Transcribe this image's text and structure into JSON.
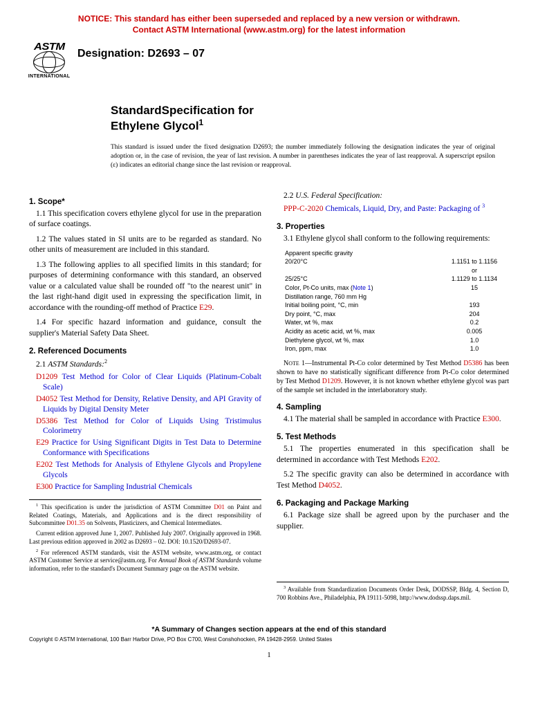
{
  "notice": {
    "line1": "NOTICE: This standard has either been superseded and replaced by a new version or withdrawn.",
    "line2": "Contact ASTM International (www.astm.org) for the latest information"
  },
  "logo": {
    "top": "ASTM",
    "bottom": "INTERNATIONAL"
  },
  "designation": "Designation: D2693 – 07",
  "title": {
    "line1": "StandardSpecification for",
    "line2": "Ethylene Glycol",
    "sup": "1"
  },
  "issue_note": "This standard is issued under the fixed designation D2693; the number immediately following the designation indicates the year of original adoption or, in the case of revision, the year of last revision. A number in parentheses indicates the year of last reapproval. A superscript epsilon (ε) indicates an editorial change since the last revision or reapproval.",
  "sections": {
    "s1_head": "1. Scope*",
    "s1_1": "1.1 This specification covers ethylene glycol for use in the preparation of surface coatings.",
    "s1_2": "1.2 The values stated in SI units are to be regarded as standard. No other units of measurement are included in this standard.",
    "s1_3a": "1.3 The following applies to all specified limits in this standard; for purposes of determining conformance with this standard, an observed value or a calculated value shall be rounded off \"to the nearest unit\" in the last right-hand digit used in expressing the specification limit, in accordance with the rounding-off method of Practice ",
    "s1_3_link": "E29",
    "s1_3b": ".",
    "s1_4": "1.4 For specific hazard information and guidance, consult the supplier's Material Safety Data Sheet.",
    "s2_head": "2. Referenced Documents",
    "s2_1_label": "2.1 ",
    "s2_1_italic": "ASTM Standards:",
    "s2_1_sup": "2",
    "refs": [
      {
        "code": "D1209",
        "text": "Test Method for Color of Clear Liquids (Platinum-Cobalt Scale)"
      },
      {
        "code": "D4052",
        "text": "Test Method for Density, Relative Density, and API Gravity of Liquids by Digital Density Meter"
      },
      {
        "code": "D5386",
        "text": "Test Method for Color of Liquids Using Tristimulus Colorimetry"
      },
      {
        "code": "E29",
        "text": "Practice for Using Significant Digits in Test Data to Determine Conformance with Specifications"
      },
      {
        "code": "E202",
        "text": "Test Methods for Analysis of Ethylene Glycols and Propylene Glycols"
      },
      {
        "code": "E300",
        "text": "Practice for Sampling Industrial Chemicals"
      }
    ],
    "s2_2_label": "2.2 ",
    "s2_2_italic": "U.S. Federal Specification:",
    "s2_2_code": "PPP-C-2020",
    "s2_2_text": "Chemicals, Liquid, Dry, and Paste: Packaging of ",
    "s2_2_sup": "3",
    "s3_head": "3. Properties",
    "s3_1": "3.1 Ethylene glycol shall conform to the following requirements:",
    "props": [
      {
        "label": "Apparent specific gravity",
        "value": ""
      },
      {
        "label": "20/20°C",
        "value": "1.1151 to 1.1156"
      },
      {
        "label": "",
        "value": "or"
      },
      {
        "label": "25/25°C",
        "value": "1.1129 to 1.1134"
      },
      {
        "label": "Color, Pt-Co units, max (Note 1)",
        "value": "15",
        "note": true
      },
      {
        "label": "Distillation range, 760 mm Hg",
        "value": ""
      },
      {
        "label": "Initial boiling point, °C, min",
        "value": "193"
      },
      {
        "label": "Dry point, °C, max",
        "value": "204"
      },
      {
        "label": "Water, wt %, max",
        "value": "0.2"
      },
      {
        "label": "Acidity as acetic acid, wt %, max",
        "value": "0.005"
      },
      {
        "label": "Diethylene glycol, wt %, max",
        "value": "1.0"
      },
      {
        "label": "Iron, ppm, max",
        "value": "1.0"
      }
    ],
    "note1_label": "Note 1—",
    "note1_a": "Instrumental Pt-Co color determined by Test Method ",
    "note1_link1": "D5386",
    "note1_b": " has been shown to have no statistically significant difference from Pt-Co color determined by Test Method ",
    "note1_link2": "D1209",
    "note1_c": ". However, it is not known whether ethylene glycol was part of the sample set included in the interlaboratory study.",
    "s4_head": "4. Sampling",
    "s4_1a": "4.1 The material shall be sampled in accordance with Practice ",
    "s4_1_link": "E300",
    "s4_1b": ".",
    "s5_head": "5. Test Methods",
    "s5_1a": "5.1 The properties enumerated in this specification shall be determined in accordance with Test Methods ",
    "s5_1_link": "E202",
    "s5_1b": ".",
    "s5_2a": "5.2 The specific gravity can also be determined in accordance with Test Method ",
    "s5_2_link": "D4052",
    "s5_2b": ".",
    "s6_head": "6. Packaging and Package Marking",
    "s6_1": "6.1 Package size shall be agreed upon by the purchaser and the supplier."
  },
  "footnotes_left": {
    "fn1a": " This specification is under the jurisdiction of ASTM Committee ",
    "fn1_link1": "D01",
    "fn1b": " on Paint and Related Coatings, Materials, and Applications and is the direct responsibility of Subcommittee ",
    "fn1_link2": "D01.35",
    "fn1c": " on Solvents, Plasticizers, and Chemical Intermediates.",
    "fn1d": "Current edition approved June 1, 2007. Published July 2007. Originally approved in 1968. Last previous edition approved in 2002 as D2693 – 02. DOI: 10.1520/D2693-07.",
    "fn2a": " For referenced ASTM standards, visit the ASTM website, www.astm.org, or contact ASTM Customer Service at service@astm.org. For ",
    "fn2_italic": "Annual Book of ASTM Standards",
    "fn2b": " volume information, refer to the standard's Document Summary page on the ASTM website."
  },
  "footnotes_right": {
    "fn3": " Available from Standardization Documents Order Desk, DODSSP, Bldg. 4, Section D, 700 Robbins Ave., Philadelphia, PA 19111-5098, http://www.dodssp.daps.mil."
  },
  "summary": "*A Summary of Changes section appears at the end of this standard",
  "copyright": "Copyright © ASTM International, 100 Barr Harbor Drive, PO Box C700, West Conshohocken, PA 19428-2959. United States",
  "page_num": "1"
}
